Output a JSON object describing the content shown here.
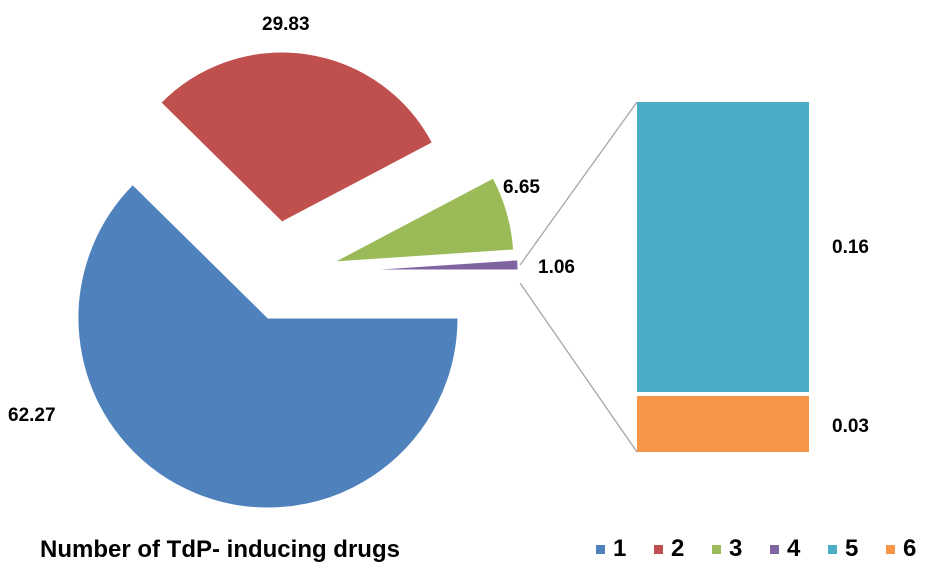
{
  "chart_data": {
    "type": "pie",
    "title": "Number of TdP- inducing drugs",
    "slices": [
      {
        "name": "1",
        "value": 62.27,
        "label": "62.27",
        "color": "#4f81bd"
      },
      {
        "name": "2",
        "value": 29.83,
        "label": "29.83",
        "color": "#c0504d"
      },
      {
        "name": "3",
        "value": 6.65,
        "label": "6.65",
        "color": "#9bbb59"
      },
      {
        "name": "4",
        "value": 1.06,
        "label": "1.06",
        "color": "#8064a2"
      }
    ],
    "breakout": {
      "type": "stacked-bar",
      "from_slice": "4",
      "segments": [
        {
          "name": "5",
          "value": 0.16,
          "label": "0.16",
          "color": "#4bacc6"
        },
        {
          "name": "6",
          "value": 0.03,
          "label": "0.03",
          "color": "#f79646"
        }
      ]
    },
    "legend": [
      "1",
      "2",
      "3",
      "4",
      "5",
      "6"
    ],
    "legend_position": "bottom-right"
  }
}
